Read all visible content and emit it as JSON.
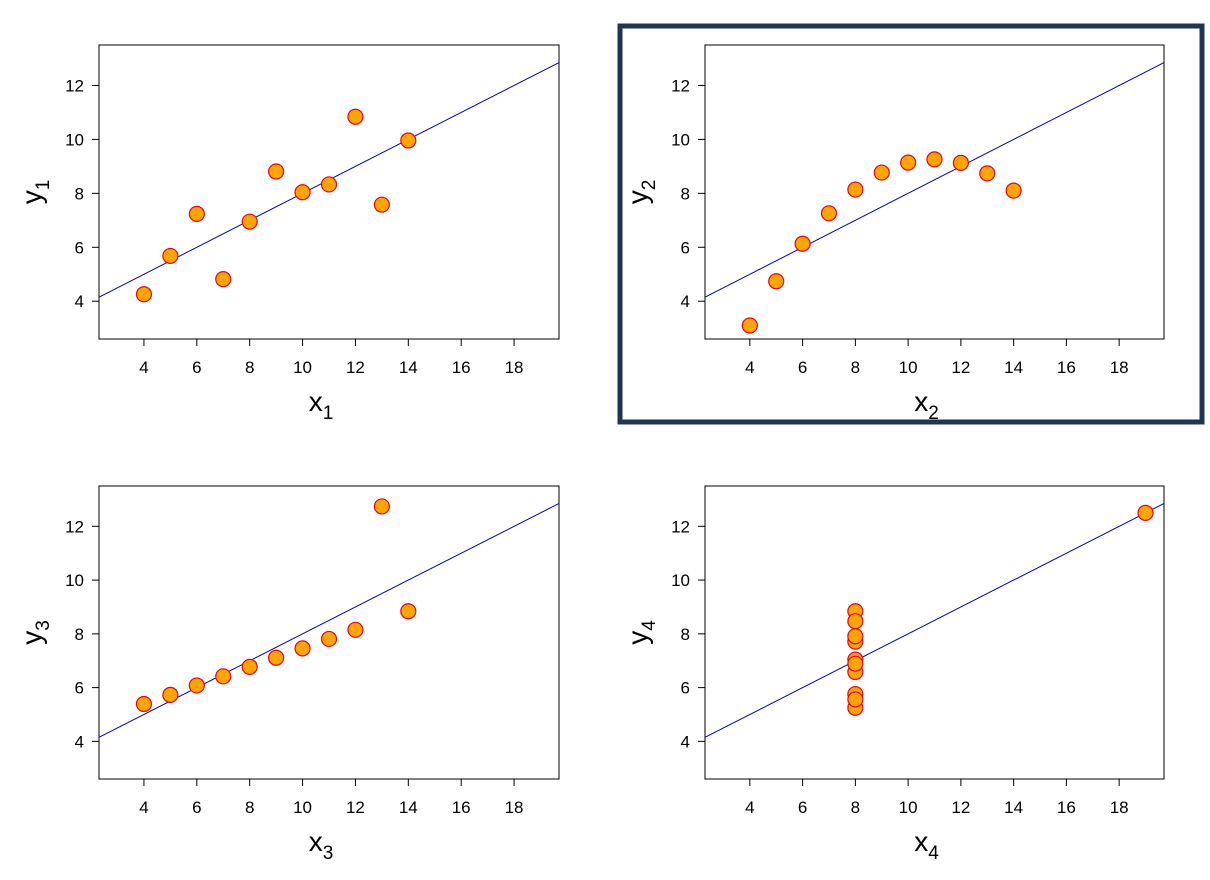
{
  "colors": {
    "point_fill": "#ffa500",
    "point_stroke": "#e8001e",
    "fit_line": "#0000cc",
    "highlight_border": "#1f3555",
    "frame": "#000000"
  },
  "chart_data": [
    {
      "type": "scatter",
      "xlabel": "x",
      "xlabel_sub": "1",
      "ylabel": "y",
      "ylabel_sub": "1",
      "xlim": [
        2.3,
        19.7
      ],
      "ylim": [
        2.6,
        13.5
      ],
      "xticks": [
        4,
        6,
        8,
        10,
        12,
        14,
        16,
        18
      ],
      "yticks": [
        4,
        6,
        8,
        10,
        12
      ],
      "x": [
        10,
        8,
        13,
        9,
        11,
        14,
        6,
        4,
        12,
        7,
        5
      ],
      "y": [
        8.04,
        6.95,
        7.58,
        8.81,
        8.33,
        9.96,
        7.24,
        4.26,
        10.84,
        4.82,
        5.68
      ],
      "fit": {
        "intercept": 3.0,
        "slope": 0.5
      },
      "highlighted": false
    },
    {
      "type": "scatter",
      "xlabel": "x",
      "xlabel_sub": "2",
      "ylabel": "y",
      "ylabel_sub": "2",
      "xlim": [
        2.3,
        19.7
      ],
      "ylim": [
        2.6,
        13.5
      ],
      "xticks": [
        4,
        6,
        8,
        10,
        12,
        14,
        16,
        18
      ],
      "yticks": [
        4,
        6,
        8,
        10,
        12
      ],
      "x": [
        10,
        8,
        13,
        9,
        11,
        14,
        6,
        4,
        12,
        7,
        5
      ],
      "y": [
        9.14,
        8.14,
        8.74,
        8.77,
        9.26,
        8.1,
        6.13,
        3.1,
        9.13,
        7.26,
        4.74
      ],
      "fit": {
        "intercept": 3.0,
        "slope": 0.5
      },
      "highlighted": true
    },
    {
      "type": "scatter",
      "xlabel": "x",
      "xlabel_sub": "3",
      "ylabel": "y",
      "ylabel_sub": "3",
      "xlim": [
        2.3,
        19.7
      ],
      "ylim": [
        2.6,
        13.5
      ],
      "xticks": [
        4,
        6,
        8,
        10,
        12,
        14,
        16,
        18
      ],
      "yticks": [
        4,
        6,
        8,
        10,
        12
      ],
      "x": [
        10,
        8,
        13,
        9,
        11,
        14,
        6,
        4,
        12,
        7,
        5
      ],
      "y": [
        7.46,
        6.77,
        12.74,
        7.11,
        7.81,
        8.84,
        6.08,
        5.39,
        8.15,
        6.42,
        5.73
      ],
      "fit": {
        "intercept": 3.0,
        "slope": 0.5
      },
      "highlighted": false
    },
    {
      "type": "scatter",
      "xlabel": "x",
      "xlabel_sub": "4",
      "ylabel": "y",
      "ylabel_sub": "4",
      "xlim": [
        2.3,
        19.7
      ],
      "ylim": [
        2.6,
        13.5
      ],
      "xticks": [
        4,
        6,
        8,
        10,
        12,
        14,
        16,
        18
      ],
      "yticks": [
        4,
        6,
        8,
        10,
        12
      ],
      "x": [
        8,
        8,
        8,
        8,
        8,
        8,
        8,
        19,
        8,
        8,
        8
      ],
      "y": [
        6.58,
        5.76,
        7.71,
        8.84,
        8.47,
        7.04,
        5.25,
        12.5,
        5.56,
        7.91,
        6.89
      ],
      "fit": {
        "intercept": 3.0,
        "slope": 0.5
      },
      "highlighted": false
    }
  ]
}
